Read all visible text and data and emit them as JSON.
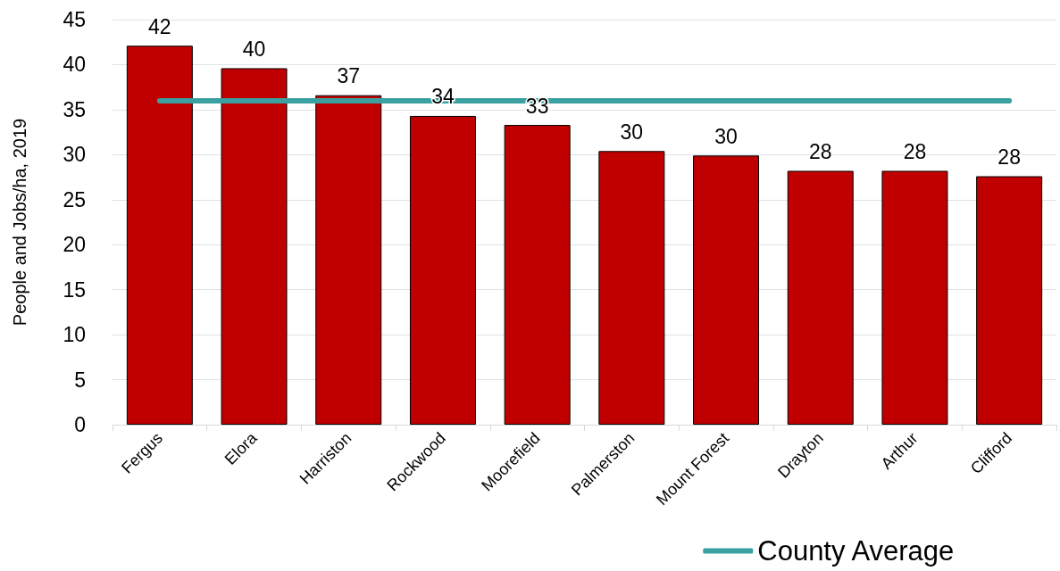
{
  "chart_data": {
    "type": "bar",
    "ylabel": "People and Jobs/ha, 2019",
    "categories": [
      "Fergus",
      "Elora",
      "Harriston",
      "Rockwood",
      "Moorefield",
      "Palmerston",
      "Mount Forest",
      "Drayton",
      "Arthur",
      "Clifford"
    ],
    "values": [
      42.1,
      39.6,
      36.6,
      34.3,
      33.3,
      30.4,
      29.9,
      28.2,
      28.2,
      27.6
    ],
    "value_labels": [
      "42",
      "40",
      "37",
      "34",
      "33",
      "30",
      "30",
      "28",
      "28",
      "28"
    ],
    "color": "#c00000",
    "ylim": [
      0,
      45
    ],
    "yticks": [
      0,
      5,
      10,
      15,
      20,
      25,
      30,
      35,
      40,
      45
    ],
    "grid": "y",
    "ref_lines": [
      {
        "axis": "y",
        "value": 36,
        "label": "County Average",
        "color": "#3aa0a0"
      }
    ],
    "legend": "bottom right"
  }
}
